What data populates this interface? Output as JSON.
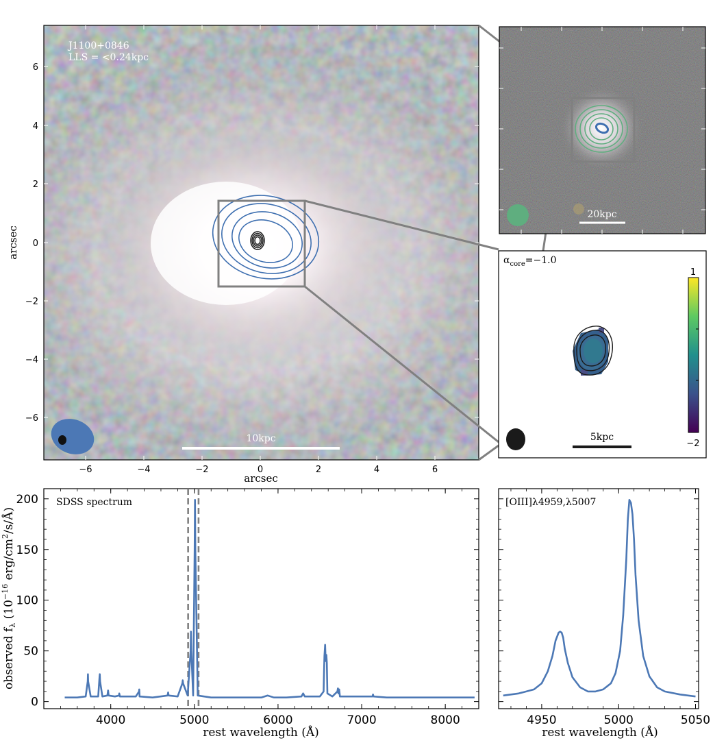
{
  "colors": {
    "spectrum": "#4c78b5",
    "contour_blue": "#3e6fb0",
    "contour_black": "#1a1a1a",
    "contour_green": "#5fae7f",
    "frame_grey": "#808080"
  },
  "main_image": {
    "object_name": "J1100+0846",
    "lls_text": "LLS = <0.24kpc",
    "scalebar_label": "10kpc",
    "xlabel": "arcsec",
    "ylabel": "arcsec",
    "xticks": [
      "−6",
      "−4",
      "−2",
      "0",
      "2",
      "4",
      "6"
    ],
    "yticks": [
      "6",
      "4",
      "2",
      "0",
      "−2",
      "−4",
      "−6"
    ]
  },
  "inset_top": {
    "scalebar_label": "20kpc"
  },
  "inset_alpha": {
    "label": "α",
    "label_sub": "core",
    "label_value": "=−1.0",
    "scalebar_label": "5kpc",
    "colorbar_max": "1",
    "colorbar_min": "−2"
  },
  "chart_data": [
    {
      "type": "line",
      "title": "SDSS spectrum",
      "xlabel": "rest wavelength (Å)",
      "ylabel": "observed f",
      "ylabel_sub": "λ",
      "ylabel_units": " (10",
      "ylabel_exp": "−16",
      "ylabel_units2": " erg/cm",
      "ylabel_exp2": "2",
      "ylabel_units3": "/s/Å)",
      "xlim": [
        3200,
        8400
      ],
      "ylim": [
        -7,
        210
      ],
      "xticks": [
        "4000",
        "5000",
        "6000",
        "7000",
        "8000"
      ],
      "yticks": [
        "0",
        "50",
        "100",
        "150",
        "200"
      ],
      "vlines": [
        4925,
        5050
      ],
      "series": [
        {
          "x": [
            3450,
            3600,
            3700,
            3725,
            3727,
            3730,
            3760,
            3850,
            3866,
            3869,
            3872,
            3900,
            3960,
            3968,
            3975,
            4050,
            4100,
            4102,
            4110,
            4300,
            4338,
            4341,
            4345,
            4500,
            4680,
            4686,
            4692,
            4800,
            4857,
            4861,
            4865,
            4920,
            4955,
            4959,
            4963,
            4985,
            5003,
            5007,
            5011,
            5040,
            5200,
            5500,
            5700,
            5800,
            5876,
            5950,
            6100,
            6280,
            6300,
            6320,
            6500,
            6545,
            6548,
            6552,
            6555,
            6563,
            6570,
            6578,
            6584,
            6590,
            6650,
            6710,
            6716,
            6722,
            6731,
            6740,
            6900,
            7130,
            7136,
            7142,
            7300,
            7600,
            8000,
            8350
          ],
          "y": [
            4,
            4,
            5,
            20,
            27,
            20,
            5,
            5,
            24,
            27,
            20,
            5,
            6,
            11,
            6,
            5,
            6,
            8,
            5,
            5,
            10,
            12,
            5,
            4,
            6,
            9,
            6,
            5,
            18,
            21,
            18,
            6,
            50,
            69,
            50,
            6,
            150,
            199,
            150,
            6,
            4,
            4,
            4,
            4,
            6,
            4,
            4,
            5,
            8,
            5,
            5,
            10,
            20,
            35,
            45,
            56,
            40,
            46,
            38,
            8,
            5,
            10,
            13,
            8,
            12,
            5,
            5,
            5,
            7,
            5,
            4,
            4,
            4,
            4
          ]
        }
      ]
    },
    {
      "type": "line",
      "title": "[OIII]λ4959,λ5007",
      "xlabel": "rest wavelength (Å)",
      "xlim": [
        4922,
        5052
      ],
      "ylim": [
        -7,
        210
      ],
      "xticks": [
        "4950",
        "5000",
        "5050"
      ],
      "series": [
        {
          "x": [
            4925,
            4935,
            4945,
            4950,
            4954,
            4957,
            4959,
            4961,
            4962,
            4963,
            4964,
            4965,
            4967,
            4970,
            4975,
            4980,
            4985,
            4990,
            4995,
            4998,
            5001,
            5003,
            5005,
            5006,
            5007,
            5008,
            5009,
            5010,
            5011,
            5013,
            5016,
            5020,
            5025,
            5030,
            5040,
            5050
          ],
          "y": [
            6,
            8,
            12,
            18,
            30,
            45,
            60,
            68,
            69,
            68,
            63,
            52,
            38,
            24,
            14,
            10,
            10,
            12,
            18,
            28,
            50,
            85,
            140,
            180,
            199,
            196,
            185,
            160,
            125,
            80,
            45,
            25,
            14,
            10,
            7,
            5
          ]
        }
      ]
    }
  ]
}
